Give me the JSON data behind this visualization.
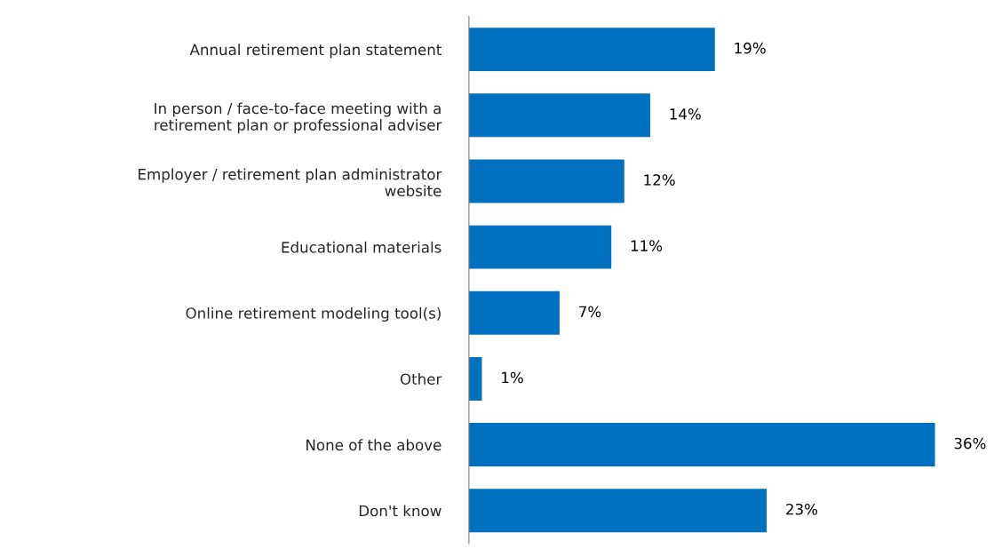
{
  "chart_data": {
    "type": "bar",
    "orientation": "horizontal",
    "categories": [
      "Annual retirement plan statement",
      "In person / face-to-face meeting with a\nretirement plan or professional adviser",
      "Employer / retirement plan administrator\nwebsite",
      "Educational materials",
      "Online retirement modeling tool(s)",
      "Other",
      "None of the above",
      "Don't know"
    ],
    "values": [
      19,
      14,
      12,
      11,
      7,
      1,
      36,
      23
    ],
    "value_labels": [
      "19%",
      "14%",
      "12%",
      "11%",
      "7%",
      "1%",
      "36%",
      "23%"
    ],
    "color": "#0070c0",
    "grid": false,
    "legend": false
  }
}
